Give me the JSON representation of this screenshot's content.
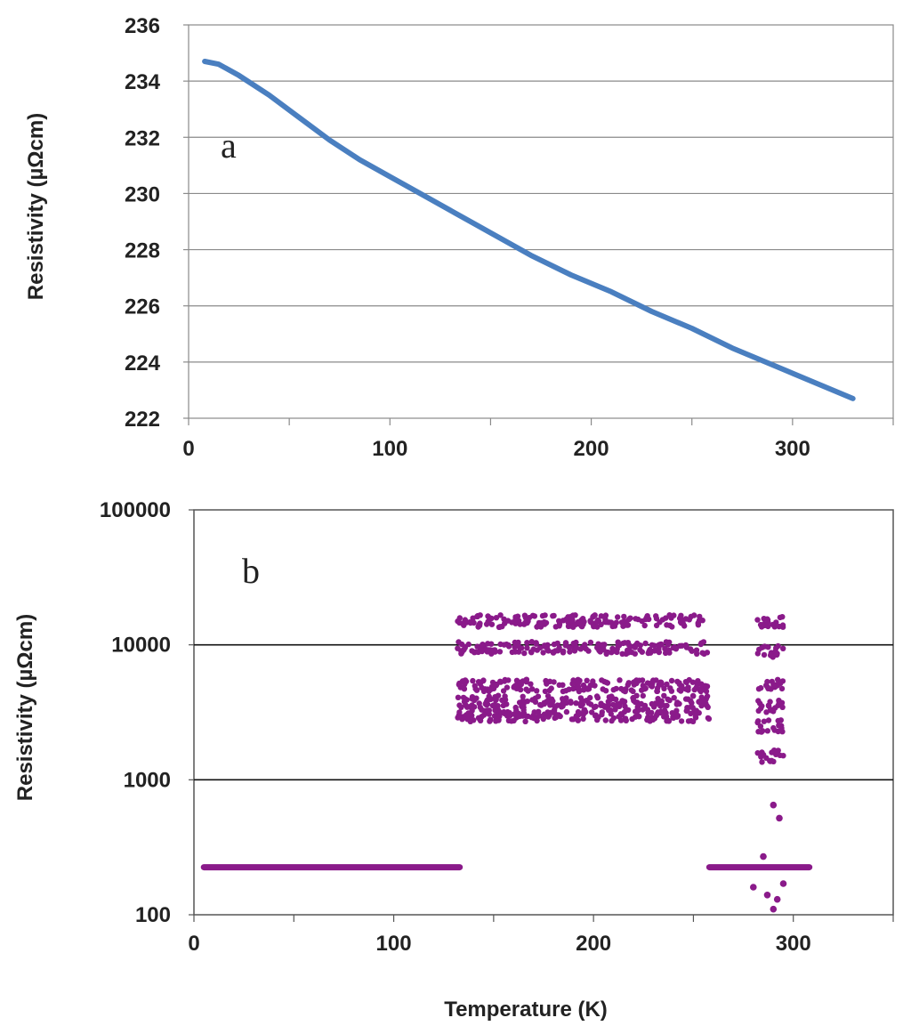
{
  "chart_data": [
    {
      "type": "line",
      "panel_label": "a",
      "xlabel": "",
      "ylabel": "Resistivity (µΩcm)",
      "xlim": [
        0,
        350
      ],
      "ylim": [
        222,
        236
      ],
      "x_ticks": [
        "0",
        "100",
        "200",
        "300"
      ],
      "y_ticks": [
        "222",
        "224",
        "226",
        "228",
        "230",
        "232",
        "234",
        "236"
      ],
      "grid": "horizontal",
      "color": "#4a7fc0",
      "series": [
        {
          "x": [
            8,
            15,
            25,
            40,
            55,
            70,
            85,
            100,
            115,
            130,
            150,
            170,
            190,
            210,
            230,
            250,
            270,
            290,
            310,
            330
          ],
          "y": [
            234.7,
            234.6,
            234.2,
            233.5,
            232.7,
            231.9,
            231.2,
            230.6,
            230.0,
            229.4,
            228.6,
            227.8,
            227.1,
            226.5,
            225.8,
            225.2,
            224.5,
            223.9,
            223.3,
            222.7
          ]
        }
      ]
    },
    {
      "type": "scatter",
      "panel_label": "b",
      "xlabel": "Temperature (K)",
      "ylabel": "Resistivity  (µΩcm)",
      "xlim": [
        0,
        350
      ],
      "ylim": [
        100,
        100000
      ],
      "yscale": "log",
      "x_ticks": [
        "0",
        "100",
        "200",
        "300"
      ],
      "y_ticks": [
        "100",
        "1000",
        "10000",
        "100000"
      ],
      "grid": "horizontal",
      "color": "#8a1a8a",
      "segments": [
        {
          "x_range": [
            5,
            133
          ],
          "y": 225
        },
        {
          "x_range": [
            258,
            308
          ],
          "y": 225
        }
      ],
      "bands": [
        {
          "x_range": [
            132,
            258
          ],
          "y_values": [
            15000,
            9500,
            5000,
            3800,
            3000
          ]
        },
        {
          "x_range": [
            282,
            295
          ],
          "y_values": [
            15000,
            9000,
            5000,
            3500,
            2500,
            1500
          ]
        }
      ],
      "isolated_points": [
        {
          "x": 290,
          "y": 650
        },
        {
          "x": 293,
          "y": 520
        },
        {
          "x": 280,
          "y": 160
        },
        {
          "x": 287,
          "y": 140
        },
        {
          "x": 290,
          "y": 110
        },
        {
          "x": 292,
          "y": 130
        },
        {
          "x": 285,
          "y": 270
        },
        {
          "x": 295,
          "y": 170
        }
      ]
    }
  ]
}
